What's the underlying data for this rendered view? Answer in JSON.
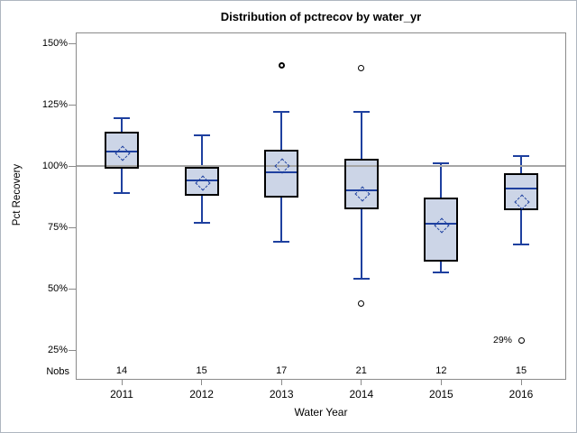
{
  "title": "Distribution of pctrecov by water_yr",
  "axes": {
    "y_title": "Pct Recovery",
    "x_title": "Water Year",
    "nobs_row_label": "Nobs"
  },
  "colors": {
    "box_fill": "#ccd5e7",
    "box_border": "#000000",
    "line_blue": "#1e409f",
    "refline_gray": "#a6a6a6",
    "axis_gray": "#8a8a8a",
    "outlier_black": "#000000"
  },
  "chart_data": {
    "type": "box",
    "title": "Distribution of pctrecov by water_yr",
    "xlabel": "Water Year",
    "ylabel": "Pct Recovery",
    "categories": [
      "2011",
      "2012",
      "2013",
      "2014",
      "2015",
      "2016"
    ],
    "nobs_label": "Nobs",
    "nobs": [
      14,
      15,
      17,
      21,
      12,
      15
    ],
    "y_ticks": [
      {
        "label": "150%",
        "value": 150
      },
      {
        "label": "125%",
        "value": 125
      },
      {
        "label": "100%",
        "value": 100
      },
      {
        "label": "75%",
        "value": 75
      },
      {
        "label": "50%",
        "value": 50
      },
      {
        "label": "25%",
        "value": 25
      }
    ],
    "ylim": [
      13,
      154
    ],
    "reference_line": 100,
    "grid": false,
    "legend": "none",
    "series": [
      {
        "category": "2011",
        "nobs": 14,
        "whisker_low": 89,
        "q1": 99,
        "median": 106,
        "mean": 105.5,
        "q3": 114,
        "whisker_high": 119.5,
        "outliers": []
      },
      {
        "category": "2012",
        "nobs": 15,
        "whisker_low": 77,
        "q1": 88,
        "median": 94,
        "mean": 93.5,
        "q3": 99.5,
        "whisker_high": 112.5,
        "outliers": []
      },
      {
        "category": "2013",
        "nobs": 17,
        "whisker_low": 69,
        "q1": 87,
        "median": 97.5,
        "mean": 100.5,
        "q3": 106.5,
        "whisker_high": 122,
        "outliers": [
          141
        ],
        "outlier_bold": true
      },
      {
        "category": "2014",
        "nobs": 21,
        "whisker_low": 54,
        "q1": 82.5,
        "median": 90,
        "mean": 89,
        "q3": 103,
        "whisker_high": 122,
        "outliers": [
          140,
          44
        ]
      },
      {
        "category": "2015",
        "nobs": 12,
        "whisker_low": 56.5,
        "q1": 61,
        "median": 76.5,
        "mean": 76,
        "q3": 87,
        "whisker_high": 101,
        "outliers": []
      },
      {
        "category": "2016",
        "nobs": 15,
        "whisker_low": 68,
        "q1": 82,
        "median": 91,
        "mean": 85.5,
        "q3": 97,
        "whisker_high": 104,
        "outliers": [
          29
        ]
      }
    ],
    "annotations": [
      {
        "text": "29%",
        "category": "2016",
        "value": 29
      }
    ]
  }
}
